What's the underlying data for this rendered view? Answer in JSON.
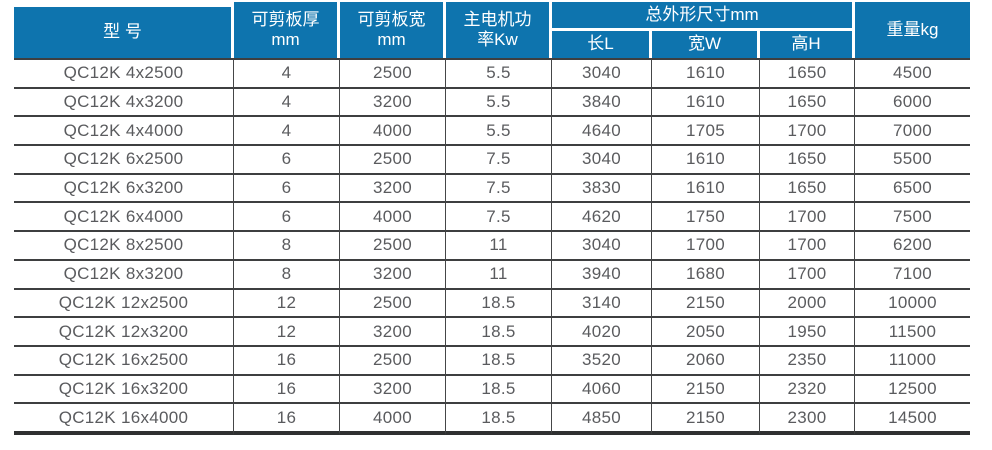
{
  "table": {
    "title_semantic": "QC12K shearing machine specifications",
    "headers": {
      "model": "型 号",
      "thickness": "可剪板厚\nmm",
      "sheet_width": "可剪板宽\nmm",
      "power": "主电机功\n率Kw",
      "dimensions_group": "总外形尺寸mm",
      "dim_length": "长L",
      "dim_width": "宽W",
      "dim_height": "高H",
      "weight": "重量kg"
    },
    "column_keys": [
      "model",
      "thickness-mm",
      "sheet-width-mm",
      "power-kw",
      "length-l",
      "width-w",
      "height-h",
      "weight-kg"
    ],
    "rows": [
      [
        "QC12K 4x2500",
        "4",
        "2500",
        "5.5",
        "3040",
        "1610",
        "1650",
        "4500"
      ],
      [
        "QC12K 4x3200",
        "4",
        "3200",
        "5.5",
        "3840",
        "1610",
        "1650",
        "6000"
      ],
      [
        "QC12K 4x4000",
        "4",
        "4000",
        "5.5",
        "4640",
        "1705",
        "1700",
        "7000"
      ],
      [
        "QC12K 6x2500",
        "6",
        "2500",
        "7.5",
        "3040",
        "1610",
        "1650",
        "5500"
      ],
      [
        "QC12K 6x3200",
        "6",
        "3200",
        "7.5",
        "3830",
        "1610",
        "1650",
        "6500"
      ],
      [
        "QC12K 6x4000",
        "6",
        "4000",
        "7.5",
        "4620",
        "1750",
        "1700",
        "7500"
      ],
      [
        "QC12K 8x2500",
        "8",
        "2500",
        "11",
        "3040",
        "1700",
        "1700",
        "6200"
      ],
      [
        "QC12K 8x3200",
        "8",
        "3200",
        "11",
        "3940",
        "1680",
        "1700",
        "7100"
      ],
      [
        "QC12K 12x2500",
        "12",
        "2500",
        "18.5",
        "3140",
        "2150",
        "2000",
        "10000"
      ],
      [
        "QC12K 12x3200",
        "12",
        "3200",
        "18.5",
        "4020",
        "2050",
        "1950",
        "11500"
      ],
      [
        "QC12K 16x2500",
        "16",
        "2500",
        "18.5",
        "3520",
        "2060",
        "2350",
        "11000"
      ],
      [
        "QC12K 16x3200",
        "16",
        "3200",
        "18.5",
        "4060",
        "2150",
        "2320",
        "12500"
      ],
      [
        "QC12K 16x4000",
        "16",
        "4000",
        "18.5",
        "4850",
        "2150",
        "2300",
        "14500"
      ]
    ],
    "colors": {
      "header_bg": "#0e74ae",
      "header_text": "#ffffff",
      "body_text": "#5a5b5e",
      "grid_line": "#3e3f40",
      "bottom_rule": "#2f3031"
    }
  }
}
